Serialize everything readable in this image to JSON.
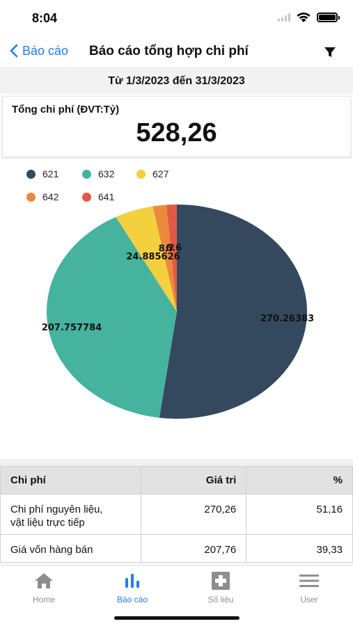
{
  "status": {
    "time": "8:04"
  },
  "nav": {
    "back_label": "Báo cáo",
    "title": "Báo cáo tổng hợp chi phí"
  },
  "date_range": "Từ 1/3/2023 đến 31/3/2023",
  "summary": {
    "label": "Tổng chi phí (ĐVT:Tỷ)",
    "value": "528,26"
  },
  "legend": [
    {
      "label": "621",
      "color": "#34495e"
    },
    {
      "label": "632",
      "color": "#45b39d"
    },
    {
      "label": "627",
      "color": "#f4d03f"
    },
    {
      "label": "642",
      "color": "#eb8a3c"
    },
    {
      "label": "641",
      "color": "#e05a47"
    }
  ],
  "chart_data": {
    "type": "pie",
    "slices": [
      {
        "name": "621",
        "value": 270.26383,
        "label": "270.26383",
        "color": "#34495e"
      },
      {
        "name": "632",
        "value": 207.757784,
        "label": "207.757784",
        "color": "#45b39d"
      },
      {
        "name": "627",
        "value": 24.885626,
        "label": "24.885626",
        "color": "#f4d03f"
      },
      {
        "name": "642",
        "value": 8.74,
        "label": "8.7",
        "color": "#eb8a3c"
      },
      {
        "name": "641",
        "value": 6.6,
        "label": "6.6",
        "color": "#e05a47"
      }
    ],
    "legend_position": "top-left"
  },
  "table": {
    "headers": {
      "name": "Chi phí",
      "value": "Giá tri",
      "percent": "%"
    },
    "rows": [
      {
        "name_line1": "Chi phí nguyên liệu,",
        "name_line2": "vật liệu trực tiếp",
        "value": "270,26",
        "percent": "51,16"
      },
      {
        "name_line1": "Giá vốn hàng bán",
        "name_line2": "",
        "value": "207,76",
        "percent": "39,33"
      }
    ]
  },
  "tabs": [
    {
      "label": "Home",
      "icon": "home-icon"
    },
    {
      "label": "Báo cáo",
      "icon": "bar-chart-icon"
    },
    {
      "label": "Số liệu",
      "icon": "data-icon"
    },
    {
      "label": "User",
      "icon": "menu-icon"
    }
  ],
  "colors": {
    "accent": "#1e7cf2",
    "inactive": "#8e8e8e"
  }
}
